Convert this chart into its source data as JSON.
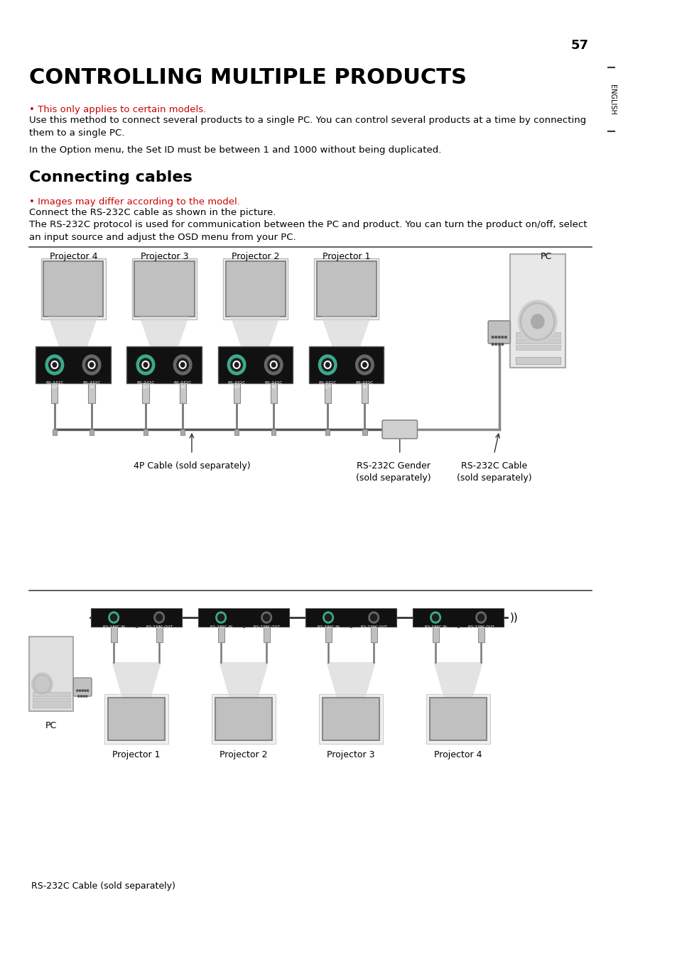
{
  "page_number": "57",
  "title": "CONTROLLING MULTIPLE PRODUCTS",
  "section": "Connecting cables",
  "sidebar_text": "ENGLISH",
  "bullet1_text": "• This only applies to certain models.",
  "para1_text": "Use this method to connect several products to a single PC. You can control several products at a time by connecting\nthem to a single PC.",
  "para2_text": "In the Option menu, the Set ID must be between 1 and 1000 without being duplicated.",
  "bullet2_text": "• Images may differ according to the model.",
  "para3_text": "Connect the RS-232C cable as shown in the picture.",
  "para4_text": "The RS-232C protocol is used for communication between the PC and product. You can turn the product on/off, select\nan input source and adjust the OSD menu from your PC.",
  "diagram1_labels": [
    "Projector 4",
    "Projector 3",
    "Projector 2",
    "Projector 1",
    "PC"
  ],
  "diagram1_cable_labels": [
    "4P Cable (sold separately)",
    "RS-232C Gender\n(sold separately)",
    "RS-232C Cable\n(sold separately)"
  ],
  "diagram2_labels": [
    "PC",
    "Projector 1",
    "Projector 2",
    "Projector 3",
    "Projector 4"
  ],
  "diagram2_footer": "RS-232C Cable (sold separately)",
  "bg_color": "#ffffff",
  "text_color": "#000000",
  "gray_color": "#aaaaaa",
  "dark_gray": "#555555",
  "teal_color": "#3aaa8a",
  "connector_black": "#1a1a1a",
  "line_color": "#888888"
}
